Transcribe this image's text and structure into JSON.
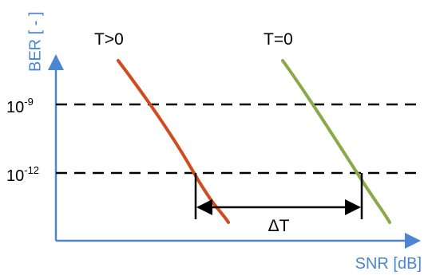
{
  "diagram": {
    "y_axis_label": "BER [ - ]",
    "x_axis_label": "SNR [dB]",
    "ber_levels": [
      {
        "base": "10",
        "exponent": "-9"
      },
      {
        "base": "10",
        "exponent": "-12"
      }
    ],
    "curves": [
      {
        "label": "T>0",
        "color": "#d24a1e"
      },
      {
        "label": "T=0",
        "color": "#8aaa4a"
      }
    ],
    "delta_label": "ΔT",
    "colors": {
      "axis": "#4a86d4",
      "axis_label": "#4a86d4",
      "threshold_line": "#000000",
      "text": "#000000"
    }
  }
}
